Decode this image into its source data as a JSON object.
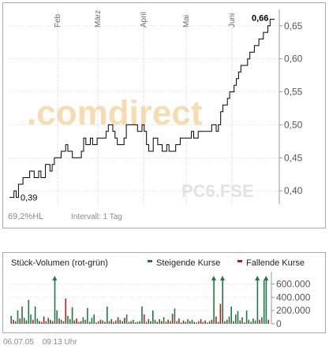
{
  "chart_data": [
    {
      "type": "line",
      "months": [
        "Feb",
        "März",
        "April",
        "Mai",
        "Juni"
      ],
      "y_ticks": [
        "0,65",
        "0,60",
        "0,55",
        "0,50",
        "0,45",
        "0,40"
      ],
      "ylim": [
        0.38,
        0.67
      ],
      "first_label": "0,39",
      "last_label": "0,66",
      "watermark_brand": ".comdirect",
      "watermark_symbol": "PC6.FSE",
      "values": [
        0.39,
        0.39,
        0.4,
        0.39,
        0.41,
        0.41,
        0.42,
        0.42,
        0.42,
        0.43,
        0.43,
        0.42,
        0.42,
        0.43,
        0.42,
        0.42,
        0.44,
        0.44,
        0.43,
        0.44,
        0.45,
        0.45,
        0.45,
        0.46,
        0.46,
        0.47,
        0.46,
        0.46,
        0.45,
        0.45,
        0.45,
        0.45,
        0.46,
        0.48,
        0.47,
        0.47,
        0.48,
        0.47,
        0.47,
        0.48,
        0.48,
        0.48,
        0.48,
        0.49,
        0.5,
        0.5,
        0.49,
        0.48,
        0.47,
        0.47,
        0.47,
        0.48,
        0.5,
        0.5,
        0.5,
        0.5,
        0.5,
        0.49,
        0.49,
        0.5,
        0.49,
        0.47,
        0.46,
        0.46,
        0.48,
        0.48,
        0.47,
        0.47,
        0.46,
        0.46,
        0.47,
        0.46,
        0.46,
        0.46,
        0.47,
        0.47,
        0.48,
        0.48,
        0.48,
        0.48,
        0.48,
        0.49,
        0.48,
        0.48,
        0.49,
        0.49,
        0.49,
        0.49,
        0.49,
        0.49,
        0.5,
        0.5,
        0.49,
        0.5,
        0.52,
        0.53,
        0.53,
        0.54,
        0.55,
        0.55,
        0.56,
        0.57,
        0.58,
        0.59,
        0.59,
        0.59,
        0.6,
        0.61,
        0.61,
        0.62,
        0.62,
        0.63,
        0.63,
        0.64,
        0.64,
        0.65,
        0.66,
        0.66,
        0.66
      ]
    },
    {
      "type": "bar",
      "title": "Stück-Volumen (rot-grün)",
      "legend_up": "Steigende Kurse",
      "legend_down": "Fallende Kurse",
      "y_ticks": [
        "600.000",
        "400.000",
        "200.000",
        "0"
      ],
      "ylim": [
        0,
        700000
      ],
      "up_color": "#1f7a3f",
      "down_color": "#b01e1e",
      "values": [
        120000,
        60000,
        40000,
        200000,
        80000,
        260000,
        90000,
        50000,
        360000,
        140000,
        60000,
        260000,
        80000,
        40000,
        30000,
        110000,
        40000,
        90000,
        60000,
        40000,
        700000,
        200000,
        80000,
        60000,
        40000,
        380000,
        120000,
        70000,
        250000,
        50000,
        80000,
        30000,
        40000,
        100000,
        60000,
        240000,
        30000,
        90000,
        140000,
        20000,
        40000,
        60000,
        50000,
        30000,
        260000,
        40000,
        70000,
        30000,
        50000,
        100000,
        60000,
        40000,
        90000,
        140000,
        30000,
        40000,
        60000,
        20000,
        30000,
        40000,
        260000,
        140000,
        30000,
        70000,
        40000,
        200000,
        60000,
        30000,
        70000,
        40000,
        100000,
        30000,
        60000,
        40000,
        150000,
        230000,
        40000,
        80000,
        20000,
        50000,
        30000,
        70000,
        40000,
        60000,
        30000,
        20000,
        40000,
        70000,
        30000,
        50000,
        20000,
        40000,
        60000,
        700000,
        110000,
        30000,
        300000,
        700000,
        40000,
        60000,
        110000,
        260000,
        40000,
        140000,
        190000,
        50000,
        100000,
        20000,
        200000,
        60000,
        30000,
        80000,
        50000,
        700000,
        60000,
        100000,
        660000,
        700000,
        60000
      ],
      "directions": [
        "u",
        "d",
        "u",
        "u",
        "d",
        "u",
        "u",
        "d",
        "u",
        "u",
        "d",
        "u",
        "u",
        "d",
        "u",
        "d",
        "u",
        "u",
        "d",
        "d",
        "u",
        "u",
        "d",
        "u",
        "u",
        "d",
        "u",
        "u",
        "u",
        "d",
        "d",
        "u",
        "d",
        "u",
        "u",
        "u",
        "d",
        "u",
        "u",
        "d",
        "u",
        "d",
        "u",
        "d",
        "u",
        "u",
        "d",
        "u",
        "u",
        "d",
        "u",
        "u",
        "d",
        "u",
        "u",
        "d",
        "u",
        "d",
        "u",
        "u",
        "u",
        "d",
        "u",
        "u",
        "d",
        "u",
        "u",
        "d",
        "u",
        "d",
        "u",
        "u",
        "d",
        "u",
        "d",
        "u",
        "u",
        "d",
        "u",
        "d",
        "u",
        "u",
        "d",
        "u",
        "d",
        "u",
        "u",
        "d",
        "u",
        "d",
        "u",
        "u",
        "d",
        "u",
        "d",
        "u",
        "d",
        "u",
        "u",
        "d",
        "u",
        "u",
        "d",
        "u",
        "u",
        "d",
        "u",
        "d",
        "u",
        "u",
        "d",
        "u",
        "u",
        "u",
        "d",
        "u",
        "u",
        "u",
        "d"
      ],
      "arrow_indices": [
        20,
        93,
        97,
        113,
        117
      ]
    }
  ],
  "info": {
    "hl_value": "69,2%",
    "hl_label": "HL",
    "interval": "Intervall: 1 Tag"
  },
  "footer": {
    "date": "06.07.05",
    "time": "09:13 Uhr"
  }
}
